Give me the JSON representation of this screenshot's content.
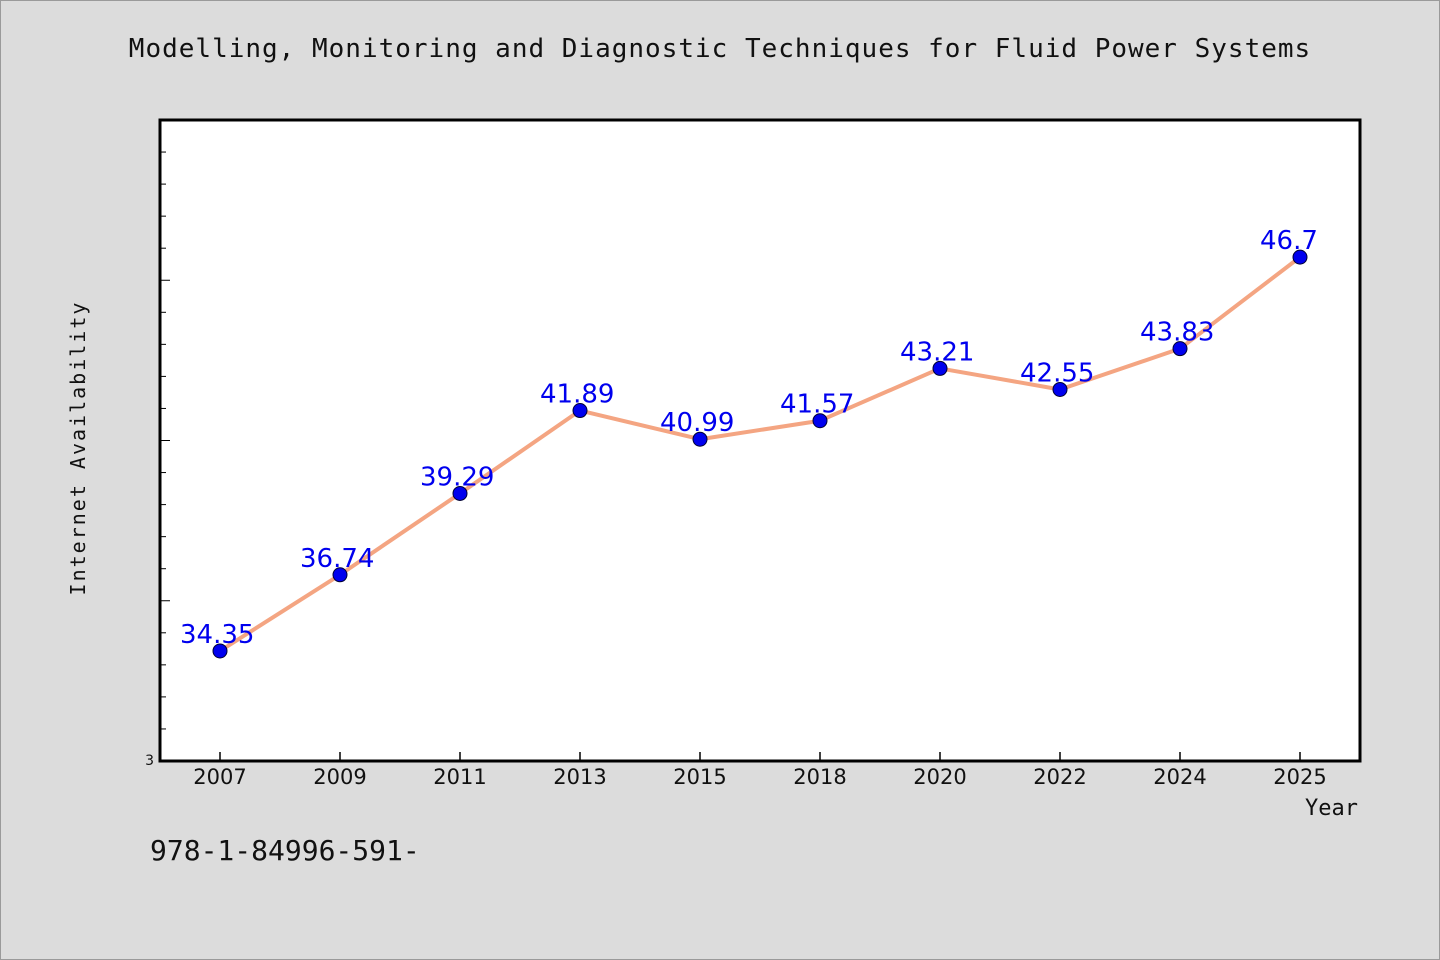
{
  "chart_title": "Modelling, Monitoring and Diagnostic Techniques for Fluid Power Systems",
  "footer_text": "978-1-84996-591-",
  "colors": {
    "background": "#dcdcdc",
    "plot_background": "#ffffff",
    "line": "#f4a582",
    "marker": "#0000ee",
    "data_label": "#0000ee"
  },
  "chart_data": {
    "type": "line",
    "title": "Modelling, Monitoring and Diagnostic Techniques for Fluid Power Systems",
    "xlabel": "Year",
    "ylabel": "Internet Availability",
    "categories": [
      "2007",
      "2009",
      "2011",
      "2013",
      "2015",
      "2018",
      "2020",
      "2022",
      "2024",
      "2025"
    ],
    "series": [
      {
        "values": [
          34.35,
          36.74,
          39.29,
          41.89,
          40.99,
          41.57,
          43.21,
          42.55,
          43.83,
          46.7
        ]
      }
    ],
    "data_labels": [
      "34.35",
      "36.74",
      "39.29",
      "41.89",
      "40.99",
      "41.57",
      "43.21",
      "42.55",
      "43.83",
      "46.7"
    ],
    "y_tick_labels": [
      "3"
    ],
    "ylim": [
      30.9,
      51
    ],
    "grid": false,
    "legend": "none"
  }
}
